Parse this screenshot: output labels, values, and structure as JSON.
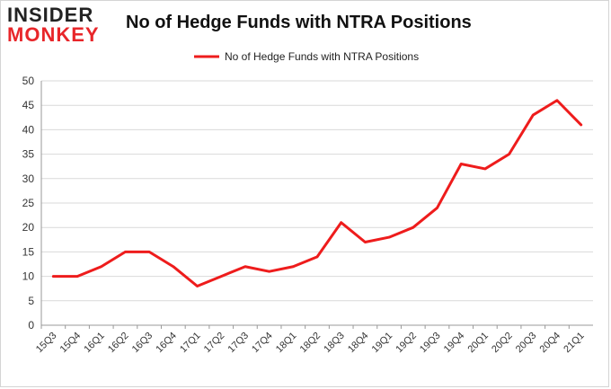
{
  "logo": {
    "line1": "INSIDER",
    "line2": "MONKEY"
  },
  "chart_data": {
    "type": "line",
    "title": "No of Hedge Funds with NTRA Positions",
    "xlabel": "",
    "ylabel": "",
    "categories": [
      "15Q3",
      "15Q4",
      "16Q1",
      "16Q2",
      "16Q3",
      "16Q4",
      "17Q1",
      "17Q2",
      "17Q3",
      "17Q4",
      "18Q1",
      "18Q2",
      "18Q3",
      "18Q4",
      "19Q1",
      "19Q2",
      "19Q3",
      "19Q4",
      "20Q1",
      "20Q2",
      "20Q3",
      "20Q4",
      "21Q1"
    ],
    "series": [
      {
        "name": "No of Hedge Funds with NTRA Positions",
        "color": "#ee1c1c",
        "values": [
          10,
          10,
          12,
          15,
          15,
          12,
          8,
          10,
          12,
          11,
          12,
          14,
          21,
          17,
          18,
          20,
          24,
          33,
          32,
          35,
          43,
          46,
          41
        ]
      }
    ],
    "ylim": [
      0,
      50
    ],
    "yticks": [
      0,
      5,
      10,
      15,
      20,
      25,
      30,
      35,
      40,
      45,
      50
    ],
    "grid": true,
    "legend": "top-center"
  }
}
